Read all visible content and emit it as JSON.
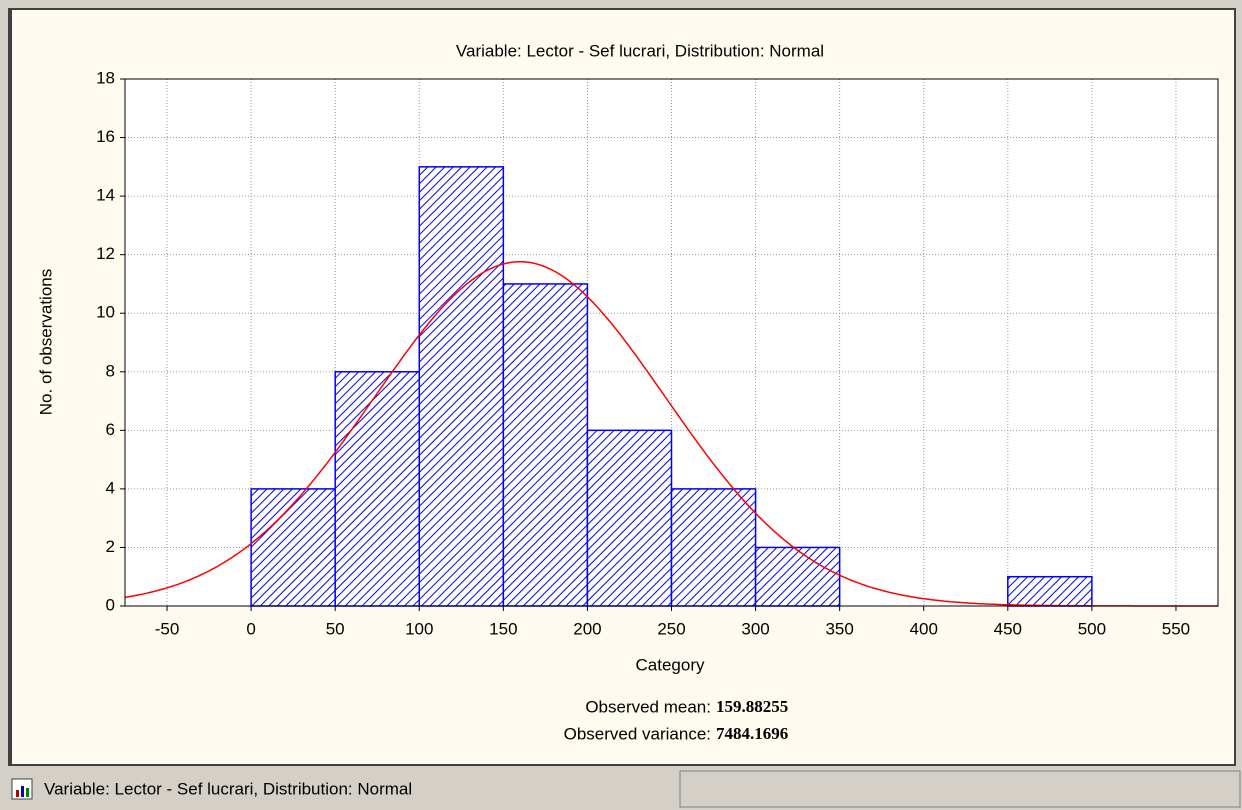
{
  "chart_data": {
    "type": "histogram",
    "title": "Variable: Lector - Sef lucrari, Distribution: Normal",
    "x_label": "Category",
    "y_label": "No. of observations",
    "bins": [
      0,
      50,
      100,
      150,
      200,
      250,
      300,
      350,
      400,
      450,
      500
    ],
    "values": [
      4,
      8,
      15,
      11,
      6,
      4,
      2,
      0,
      0,
      1
    ],
    "color": "#0000ff",
    "curve_color": "#ff0000",
    "xlim": [
      -75,
      575
    ],
    "xticks": [
      -50,
      0,
      50,
      100,
      150,
      200,
      250,
      300,
      350,
      400,
      450,
      500,
      550
    ],
    "ylim": [
      0,
      18
    ],
    "yticks": [
      0,
      2,
      4,
      6,
      8,
      10,
      12,
      14,
      16,
      18
    ],
    "grid": true,
    "mean_label": "Observed mean:",
    "mean": 159.88255,
    "variance_label": "Observed variance:",
    "variance": 7484.1696
  },
  "status_bar": {
    "text": "Variable: Lector - Sef lucrari, Distribution: Normal"
  }
}
